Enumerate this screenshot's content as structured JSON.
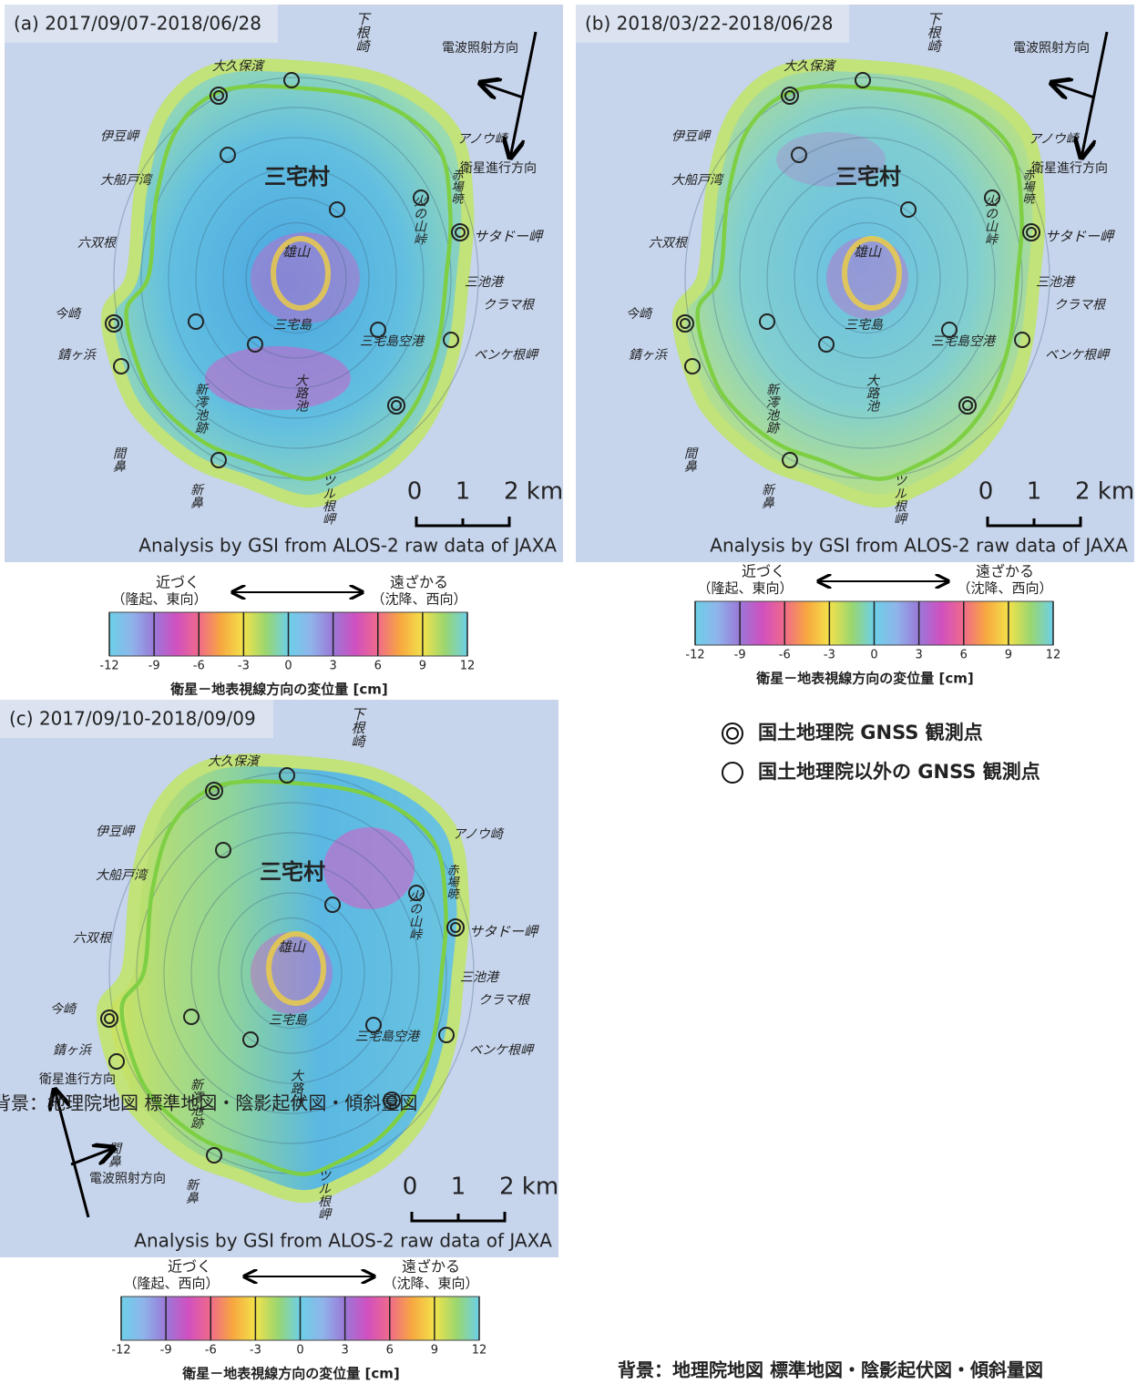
{
  "panels": [
    {
      "title": "(a) 2017/09/07-2018/06/28",
      "near_note": "（隆起、東向）",
      "far_note": "（沈降、西向）"
    },
    {
      "title": "(b) 2018/03/22-2018/06/28",
      "near_note": "（隆起、東向）",
      "far_note": "（沈降、西向）"
    },
    {
      "title": "(c) 2017/09/10-2018/09/09",
      "near_note": "（隆起、西向）",
      "far_note": "（沈降、東向）"
    }
  ],
  "place_labels": [
    "下根崎",
    "大久保濱",
    "伊豆岬",
    "大船戸湾",
    "六双根",
    "今崎",
    "錆ヶ浜",
    "三宅村",
    "雄山",
    "三宅島",
    "新澪池跡",
    "大路池",
    "間鼻",
    "新鼻",
    "ツル根岬",
    "アノウ崎",
    "赤場暁",
    "火の山峠",
    "サタドー岬",
    "三池港",
    "クラマ根",
    "ベンケ根岬",
    "三宅島空港"
  ],
  "direction": {
    "look": "電波照射方向",
    "track": "衛星進行方向"
  },
  "scale_labels": [
    "0",
    "1",
    "2 km"
  ],
  "credit": "Analysis by GSI from ALOS-2 raw data of JAXA",
  "colorbar": {
    "near": "近づく",
    "far": "遠ざかる",
    "ticks": [
      -12,
      -9,
      -6,
      -3,
      0,
      3,
      6,
      9,
      12
    ],
    "caption": "衛星－地表視線方向の変位量 [cm]"
  },
  "legend": [
    "国土地理院 GNSS 観測点",
    "国土地理院以外の GNSS 観測点"
  ],
  "footer": "背景：地理院地図 標準地図・陰影起伏図・傾斜量図"
}
